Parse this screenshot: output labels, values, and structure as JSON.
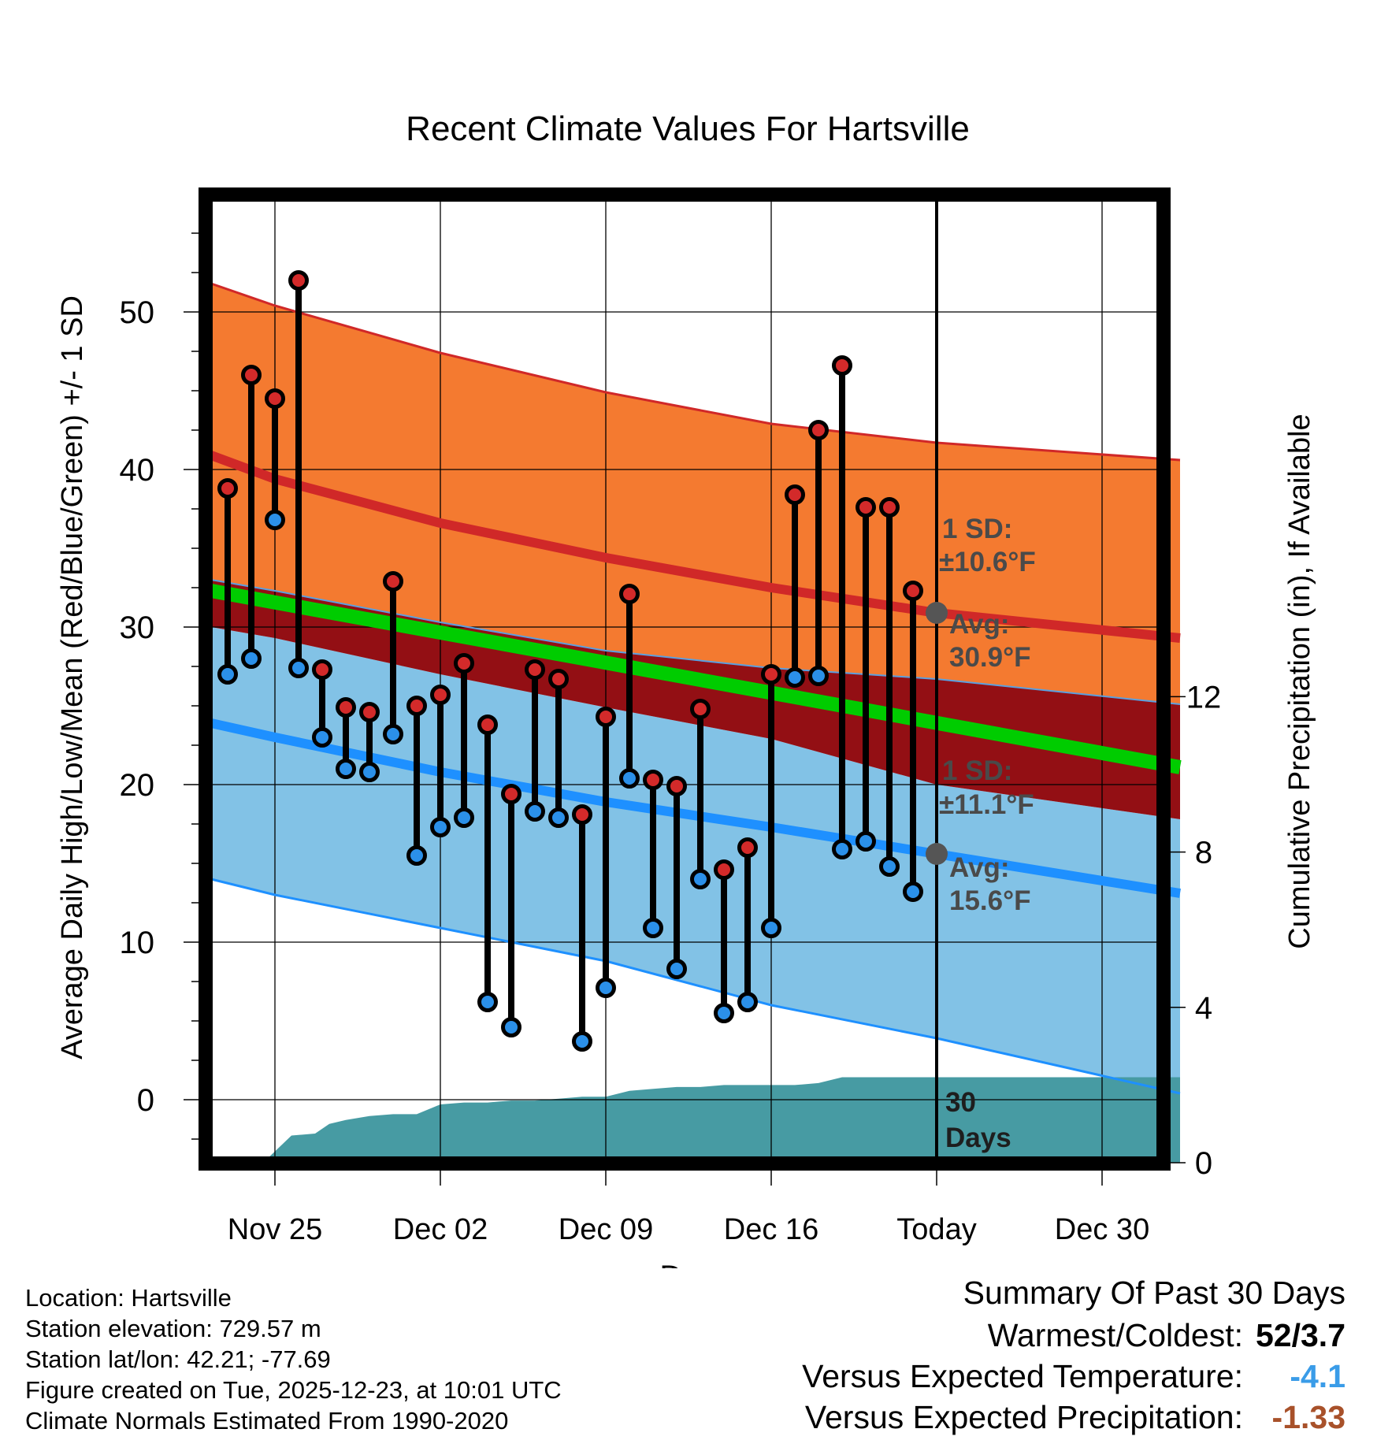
{
  "chart_data": {
    "type": "line",
    "title": "Recent Climate Values For Hartsville",
    "xlabel": "Day",
    "ylabel": "Average Daily High/Low/Mean (Red/Blue/Green) +/- 1 SD",
    "y2label": "Cumulative Precipitation (in), If Available",
    "ylim": [
      -3.8,
      57
    ],
    "y2lim": [
      0,
      32
    ],
    "xlim": [
      -3.2,
      38.5
    ],
    "x_tick_labels": [
      {
        "x": 0,
        "label": "Nov 25"
      },
      {
        "x": 7,
        "label": "Dec 02"
      },
      {
        "x": 14,
        "label": "Dec 09"
      },
      {
        "x": 21,
        "label": "Dec 16"
      },
      {
        "x": 28,
        "label": "Today"
      },
      {
        "x": 35,
        "label": "Dec 30"
      }
    ],
    "y_ticks": [
      0,
      10,
      20,
      30,
      40,
      50
    ],
    "y2_ticks": [
      0,
      4,
      8,
      12
    ],
    "today_x": 28,
    "high_normal": {
      "x": [
        -2.7,
        0,
        7,
        14,
        21,
        28,
        38.3
      ],
      "mean": [
        40.9,
        39.4,
        36.6,
        34.4,
        32.5,
        30.9,
        29.3
      ],
      "upper": [
        51.8,
        50.4,
        47.4,
        44.9,
        42.9,
        41.7,
        40.6
      ],
      "lower": [
        33.0,
        32.3,
        30.3,
        28.5,
        27.4,
        26.7,
        25.1
      ]
    },
    "mean_normal": {
      "x": [
        -2.7,
        38.3
      ],
      "values": [
        32.3,
        21.1
      ]
    },
    "low_normal": {
      "x": [
        -2.7,
        0,
        7,
        14,
        21,
        28,
        38.3
      ],
      "mean": [
        23.9,
        23.0,
        20.8,
        18.9,
        17.3,
        15.6,
        13.1
      ],
      "upper": [
        30.0,
        29.3,
        27.0,
        24.9,
        22.9,
        20.0,
        17.8
      ],
      "lower": [
        14.0,
        13.0,
        10.9,
        8.8,
        6.0,
        3.9,
        0.4
      ]
    },
    "daily": [
      {
        "x": -2,
        "high": 38.8,
        "low": 27.0
      },
      {
        "x": -1,
        "high": 46.0,
        "low": 28.0
      },
      {
        "x": 0,
        "high": 44.5,
        "low": 36.8
      },
      {
        "x": 1,
        "high": 52.0,
        "low": 27.4
      },
      {
        "x": 2,
        "high": 27.3,
        "low": 23.0
      },
      {
        "x": 3,
        "high": 24.9,
        "low": 21.0
      },
      {
        "x": 4,
        "high": 24.6,
        "low": 20.8
      },
      {
        "x": 5,
        "high": 32.9,
        "low": 23.2
      },
      {
        "x": 6,
        "high": 25.0,
        "low": 15.5
      },
      {
        "x": 7,
        "high": 25.7,
        "low": 17.3
      },
      {
        "x": 8,
        "high": 27.7,
        "low": 17.9
      },
      {
        "x": 9,
        "high": 23.8,
        "low": 6.2
      },
      {
        "x": 10,
        "high": 19.4,
        "low": 4.6
      },
      {
        "x": 11,
        "high": 27.3,
        "low": 18.3
      },
      {
        "x": 12,
        "high": 26.7,
        "low": 17.9
      },
      {
        "x": 13,
        "high": 18.1,
        "low": 3.7
      },
      {
        "x": 14,
        "high": 24.3,
        "low": 7.1
      },
      {
        "x": 15,
        "high": 32.1,
        "low": 20.4
      },
      {
        "x": 16,
        "high": 20.3,
        "low": 10.9
      },
      {
        "x": 17,
        "high": 19.9,
        "low": 8.3
      },
      {
        "x": 18,
        "high": 24.8,
        "low": 14.0
      },
      {
        "x": 19,
        "high": 14.6,
        "low": 5.5
      },
      {
        "x": 20,
        "high": 16.0,
        "low": 6.2
      },
      {
        "x": 21,
        "high": 27.0,
        "low": 10.9
      },
      {
        "x": 22,
        "high": 38.4,
        "low": 26.8
      },
      {
        "x": 23,
        "high": 42.5,
        "low": 26.9
      },
      {
        "x": 24,
        "high": 46.6,
        "low": 15.9
      },
      {
        "x": 25,
        "high": 37.6,
        "low": 16.4
      },
      {
        "x": 26,
        "high": 37.6,
        "low": 14.8
      },
      {
        "x": 27,
        "high": 32.3,
        "low": 13.2
      }
    ],
    "precip": {
      "x": [
        -3,
        -0.5,
        0.7,
        1.7,
        2.3,
        3.0,
        4.0,
        5.0,
        6.0,
        7.0,
        8.0,
        9.0,
        10.0,
        11.0,
        12.0,
        13.0,
        14.0,
        15.0,
        16.0,
        17.0,
        18.0,
        19.0,
        20.0,
        21.0,
        22.0,
        23.0,
        24.0,
        38.3
      ],
      "values": [
        0,
        0,
        0.7,
        0.75,
        1.0,
        1.1,
        1.2,
        1.25,
        1.25,
        1.5,
        1.55,
        1.55,
        1.6,
        1.6,
        1.65,
        1.7,
        1.7,
        1.85,
        1.9,
        1.95,
        1.95,
        2.0,
        2.0,
        2.0,
        2.0,
        2.05,
        2.2,
        2.2
      ]
    },
    "annotations": {
      "high_sd_label": "1 SD:",
      "high_sd_value": "±10.6°F",
      "high_avg_label": "Avg:",
      "high_avg_value": "30.9°F",
      "low_sd_label": "1 SD:",
      "low_sd_value": "±11.1°F",
      "low_avg_label": "Avg:",
      "low_avg_value": "15.6°F",
      "precip_days_value": "30",
      "precip_days_label": "Days"
    },
    "colors": {
      "high_band": "#f47a30",
      "high_line": "#d02828",
      "low_band": "#82c2e6",
      "low_line": "#1e90ff",
      "overlap_band": "#930f14",
      "mean_line": "#00cc00",
      "precip": "#479ba3",
      "high_dot": "#d32a2a",
      "low_dot": "#2b90e9"
    }
  },
  "info": {
    "location": "Location: Hartsville",
    "elevation": "Station elevation: 729.57 m",
    "latlon": "Station lat/lon: 42.21; -77.69",
    "created": "Figure created on Tue, 2025-12-23, at 10:01 UTC",
    "normals": "Climate Normals Estimated From 1990-2020"
  },
  "summary": {
    "title": "Summary Of Past 30 Days",
    "warm_cold_label": "Warmest/Coldest:",
    "warm_cold_value": "52/3.7",
    "temp_label": "Versus Expected Temperature:",
    "temp_value": "-4.1",
    "temp_color": "#3a9ce8",
    "precip_label": "Versus Expected Precipitation:",
    "precip_value": "-1.33",
    "precip_color": "#a8512a"
  }
}
